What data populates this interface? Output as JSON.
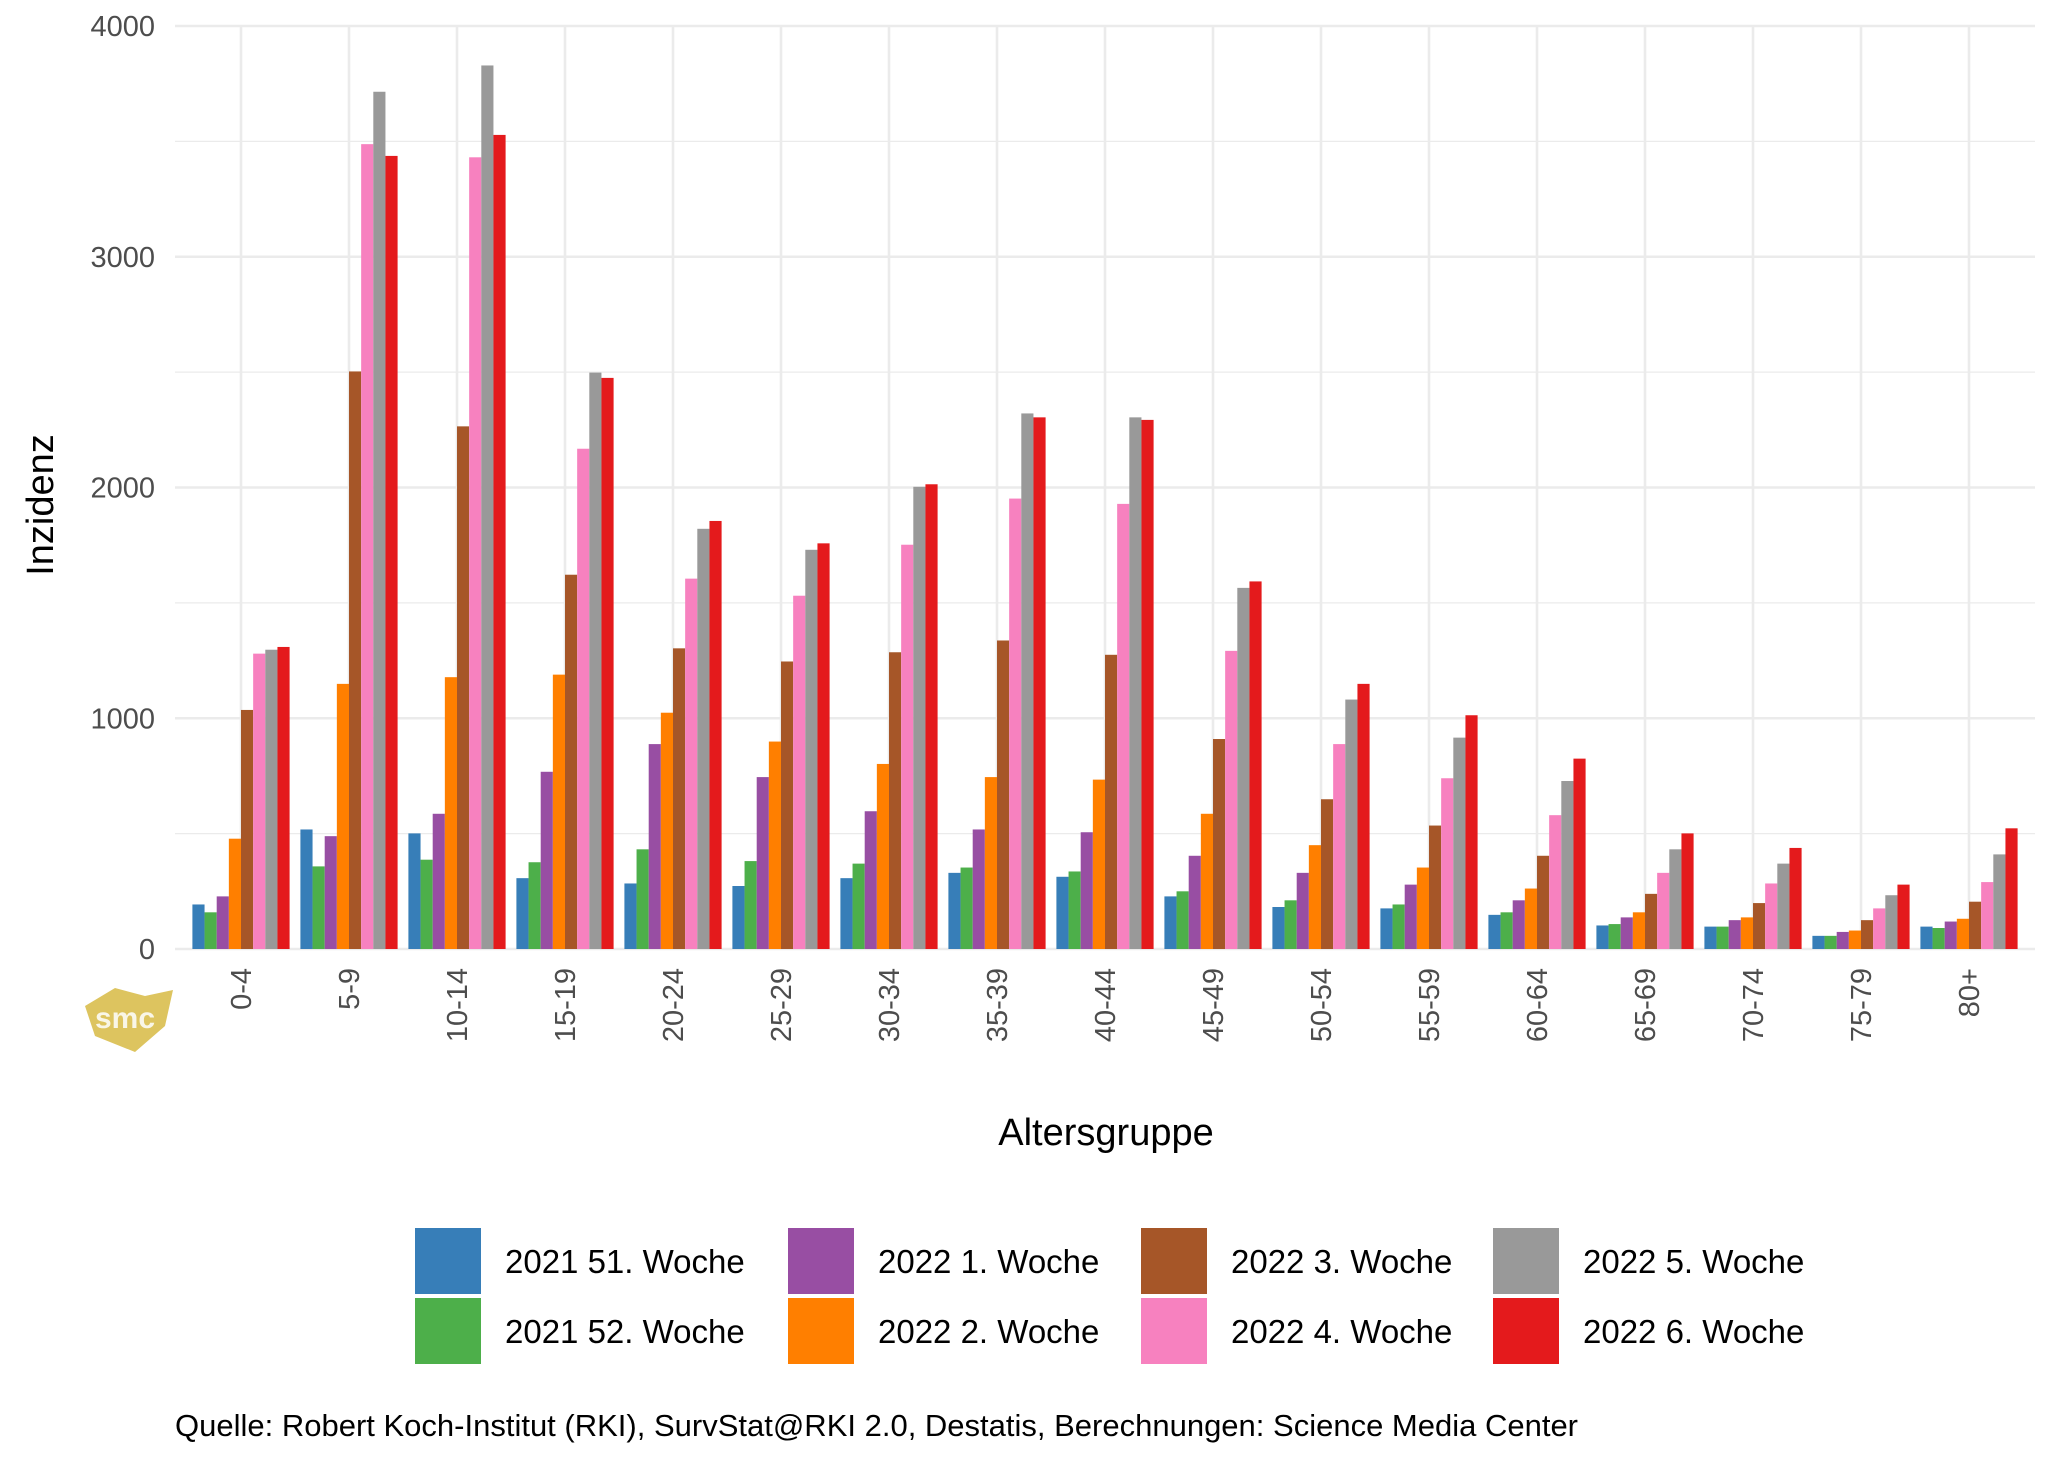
{
  "chart_data": {
    "type": "bar",
    "title": "",
    "xlabel": "Altersgruppe",
    "ylabel": "Inzidenz",
    "ylim": [
      0,
      4000
    ],
    "yticks": [
      "0",
      "1000",
      "2000",
      "3000",
      "4000"
    ],
    "grid": true,
    "legend_position": "bottom",
    "categories": [
      "0-4",
      "5-9",
      "10-14",
      "15-19",
      "20-24",
      "25-29",
      "30-34",
      "35-39",
      "40-44",
      "45-49",
      "50-54",
      "55-59",
      "60-64",
      "65-69",
      "70-74",
      "75-79",
      "80+"
    ],
    "series": [
      {
        "name": "2021 51. Woche",
        "color": "#377EB8",
        "values": [
          193,
          518,
          501,
          307,
          284,
          273,
          307,
          330,
          313,
          228,
          182,
          176,
          148,
          102,
          97,
          57,
          97
        ]
      },
      {
        "name": "2021 52. Woche",
        "color": "#4DAF4A",
        "values": [
          159,
          358,
          387,
          376,
          432,
          381,
          370,
          353,
          336,
          250,
          211,
          193,
          159,
          108,
          97,
          57,
          91
        ]
      },
      {
        "name": "2022 1. Woche",
        "color": "#984EA3",
        "values": [
          228,
          489,
          586,
          768,
          888,
          745,
          597,
          518,
          506,
          404,
          330,
          279,
          211,
          137,
          125,
          74,
          119
        ]
      },
      {
        "name": "2022 2. Woche",
        "color": "#FF7F00",
        "values": [
          478,
          1149,
          1178,
          1189,
          1024,
          899,
          802,
          745,
          734,
          586,
          450,
          353,
          262,
          159,
          137,
          80,
          131
        ]
      },
      {
        "name": "2022 3. Woche",
        "color": "#A65628",
        "values": [
          1036,
          2503,
          2265,
          1622,
          1303,
          1246,
          1286,
          1337,
          1275,
          910,
          649,
          535,
          404,
          239,
          199,
          125,
          205
        ]
      },
      {
        "name": "2022 4. Woche",
        "color": "#F781BF",
        "values": [
          1280,
          3488,
          3431,
          2168,
          1605,
          1531,
          1752,
          1952,
          1929,
          1292,
          888,
          740,
          580,
          330,
          284,
          176,
          290
        ]
      },
      {
        "name": "2022 5. Woche",
        "color": "#999999",
        "values": [
          1297,
          3715,
          3829,
          2498,
          1821,
          1730,
          2003,
          2321,
          2304,
          1565,
          1081,
          916,
          728,
          432,
          370,
          233,
          410
        ]
      },
      {
        "name": "2022 6. Woche",
        "color": "#E41A1C",
        "values": [
          1309,
          3437,
          3528,
          2475,
          1855,
          1758,
          2014,
          2304,
          2293,
          1593,
          1149,
          1013,
          825,
          501,
          438,
          279,
          523
        ]
      }
    ],
    "caption": "Quelle: Robert Koch-Institut (RKI), SurvStat@RKI 2.0, Destatis, Berechnungen: Science Media Center",
    "logo_text": "smc"
  }
}
